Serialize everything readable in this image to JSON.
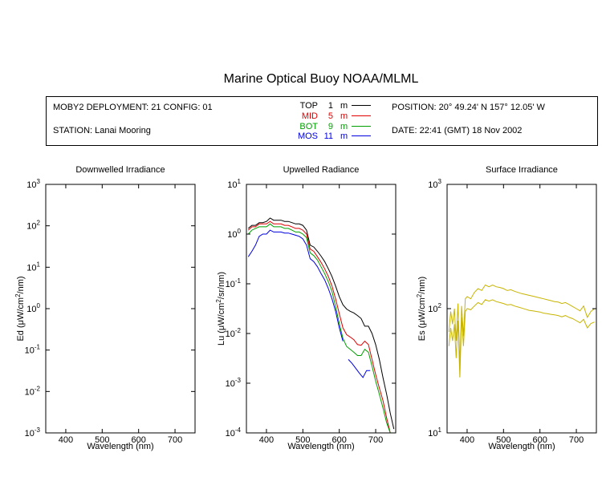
{
  "title": "Marine Optical Buoy NOAA/MLML",
  "info": {
    "deployment": "MOBY2 DEPLOYMENT: 21 CONFIG: 01",
    "station": "STATION: Lanai Mooring",
    "position": "POSITION: 20° 49.24' N   157° 12.05' W",
    "date": "DATE: 22:41 (GMT) 18 Nov 2002"
  },
  "legend": [
    {
      "name": "TOP",
      "depth": "1",
      "unit": "m",
      "color": "#000000"
    },
    {
      "name": "MID",
      "depth": "5",
      "unit": "m",
      "color": "#e00000"
    },
    {
      "name": "BOT",
      "depth": "9",
      "unit": "m",
      "color": "#00a000"
    },
    {
      "name": "MOS",
      "depth": "11",
      "unit": "m",
      "color": "#0000e0"
    }
  ],
  "chart_data": [
    {
      "type": "line",
      "title": "Downwelled Irradiance",
      "xlabel": "Wavelength (nm)",
      "ylabel": "Ed  (μW/cm²/nm)",
      "ylabel_parts": {
        "pre": "Ed  (μW/cm",
        "sup": "2",
        "post": "/nm)"
      },
      "xlim": [
        345,
        755
      ],
      "ylim": [
        0.001,
        1000
      ],
      "yscale": "log",
      "xticks": [
        400,
        500,
        600,
        700
      ],
      "ytick_exponents": [
        -3,
        -2,
        -1,
        0,
        1,
        2,
        3
      ],
      "grid": false,
      "series": []
    },
    {
      "type": "line",
      "title": "Upwelled Radiance",
      "xlabel": "Wavelength (nm)",
      "ylabel": "Lu  (μW/cm²/sr/nm)",
      "ylabel_parts": {
        "pre": "Lu  (μW/cm",
        "sup": "2",
        "post": "/sr/nm)"
      },
      "xlim": [
        345,
        755
      ],
      "ylim": [
        0.0001,
        10
      ],
      "yscale": "log",
      "xticks": [
        400,
        500,
        600,
        700
      ],
      "ytick_exponents": [
        -4,
        -3,
        -2,
        -1,
        0,
        1
      ],
      "grid": false,
      "series": [
        {
          "name": "TOP",
          "color": "#000000",
          "x": [
            350,
            360,
            370,
            380,
            390,
            400,
            410,
            420,
            430,
            440,
            450,
            460,
            470,
            480,
            490,
            500,
            510,
            520,
            530,
            540,
            550,
            560,
            570,
            580,
            590,
            600,
            610,
            620,
            630,
            640,
            650,
            660,
            670,
            680,
            690,
            700,
            710,
            720,
            730,
            740,
            750
          ],
          "y": [
            1.3,
            1.5,
            1.5,
            1.7,
            1.7,
            1.8,
            2.1,
            1.9,
            1.9,
            1.9,
            1.8,
            1.8,
            1.7,
            1.6,
            1.6,
            1.5,
            1.2,
            0.6,
            0.55,
            0.45,
            0.36,
            0.28,
            0.2,
            0.14,
            0.09,
            0.055,
            0.038,
            0.031,
            0.028,
            0.026,
            0.023,
            0.02,
            0.014,
            0.014,
            0.01,
            0.006,
            0.003,
            0.0013,
            0.0006,
            0.00025,
            0.00012
          ]
        },
        {
          "name": "MID",
          "color": "#e00000",
          "x": [
            350,
            360,
            370,
            380,
            390,
            400,
            410,
            420,
            430,
            440,
            450,
            460,
            470,
            480,
            490,
            500,
            510,
            520,
            530,
            540,
            550,
            560,
            570,
            580,
            590,
            600,
            610,
            620,
            630,
            640,
            650,
            660,
            670,
            680,
            690,
            700,
            710,
            720,
            730,
            740,
            750
          ],
          "y": [
            1.2,
            1.4,
            1.4,
            1.6,
            1.6,
            1.6,
            1.8,
            1.6,
            1.6,
            1.6,
            1.5,
            1.5,
            1.4,
            1.3,
            1.3,
            1.2,
            1.0,
            0.5,
            0.45,
            0.35,
            0.27,
            0.2,
            0.14,
            0.09,
            0.05,
            0.025,
            0.013,
            0.0095,
            0.0085,
            0.0075,
            0.006,
            0.0058,
            0.007,
            0.006,
            0.003,
            0.0015,
            0.0008,
            0.00045,
            0.0002,
            0.0001,
            0.0001
          ]
        },
        {
          "name": "BOT",
          "color": "#00a000",
          "x": [
            350,
            360,
            370,
            380,
            390,
            400,
            410,
            420,
            430,
            440,
            450,
            460,
            470,
            480,
            490,
            500,
            510,
            520,
            530,
            540,
            550,
            560,
            570,
            580,
            590,
            600,
            610,
            620,
            630,
            640,
            650,
            660,
            670,
            680,
            690,
            700,
            710,
            720,
            730,
            740,
            750
          ],
          "y": [
            1.0,
            1.2,
            1.3,
            1.4,
            1.4,
            1.4,
            1.6,
            1.4,
            1.4,
            1.4,
            1.3,
            1.3,
            1.2,
            1.1,
            1.1,
            1.0,
            0.85,
            0.42,
            0.37,
            0.3,
            0.22,
            0.16,
            0.11,
            0.07,
            0.035,
            0.016,
            0.008,
            0.0055,
            0.0048,
            0.0042,
            0.0036,
            0.0036,
            0.0048,
            0.0042,
            0.0022,
            0.0011,
            0.0006,
            0.00032,
            0.00016,
            0.0001,
            0.0001
          ]
        },
        {
          "name": "MOS",
          "color": "#0000e0",
          "x": [
            350,
            360,
            370,
            380,
            390,
            400,
            410,
            420,
            430,
            440,
            450,
            460,
            470,
            480,
            490,
            500,
            510,
            520,
            530,
            540,
            550,
            560,
            570,
            580,
            590,
            600,
            610
          ],
          "y": [
            0.35,
            0.45,
            0.6,
            0.9,
            1.0,
            1.0,
            1.2,
            1.1,
            1.1,
            1.1,
            1.05,
            1.05,
            1.0,
            0.95,
            0.9,
            0.8,
            0.6,
            0.32,
            0.28,
            0.22,
            0.16,
            0.12,
            0.08,
            0.05,
            0.028,
            0.013,
            0.007
          ]
        },
        {
          "name": "MOS-segment",
          "color": "#0000e0",
          "x": [
            625,
            635,
            645,
            655,
            665,
            675,
            685
          ],
          "y": [
            0.003,
            0.0025,
            0.002,
            0.0016,
            0.0013,
            0.0018,
            0.0018
          ]
        }
      ]
    },
    {
      "type": "line",
      "title": "Surface Irradiance",
      "xlabel": "Wavelength (nm)",
      "ylabel": "Es  (μW/cm²/nm)",
      "ylabel_parts": {
        "pre": "Es  (μW/cm",
        "sup": "2",
        "post": "/nm)"
      },
      "xlim": [
        345,
        755
      ],
      "ylim": [
        10,
        1000
      ],
      "yscale": "log",
      "xticks": [
        400,
        500,
        600,
        700
      ],
      "ytick_exponents": [
        1,
        2,
        3
      ],
      "grid": false,
      "series": [
        {
          "name": "Es-upper",
          "color": "#c8b400",
          "x": [
            350,
            355,
            360,
            365,
            370,
            375,
            380,
            385,
            390,
            395,
            400,
            410,
            420,
            430,
            440,
            450,
            460,
            470,
            480,
            490,
            500,
            510,
            520,
            530,
            540,
            550,
            560,
            570,
            580,
            590,
            600,
            610,
            620,
            630,
            640,
            650,
            660,
            670,
            680,
            690,
            700,
            710,
            720,
            730,
            740,
            750
          ],
          "y": [
            65,
            95,
            75,
            100,
            55,
            110,
            35,
            105,
            60,
            120,
            125,
            120,
            135,
            145,
            140,
            155,
            150,
            155,
            150,
            148,
            145,
            140,
            142,
            138,
            135,
            132,
            130,
            128,
            126,
            124,
            122,
            120,
            118,
            116,
            114,
            113,
            110,
            112,
            108,
            104,
            100,
            96,
            105,
            85,
            95,
            100
          ]
        },
        {
          "name": "Es-lower",
          "color": "#c8b400",
          "x": [
            350,
            355,
            360,
            365,
            370,
            375,
            380,
            385,
            390,
            395,
            400,
            410,
            420,
            430,
            440,
            450,
            460,
            470,
            480,
            490,
            500,
            510,
            520,
            530,
            540,
            550,
            560,
            570,
            580,
            590,
            600,
            610,
            620,
            630,
            640,
            650,
            660,
            670,
            680,
            690,
            700,
            710,
            720,
            730,
            740,
            750
          ],
          "y": [
            50,
            70,
            55,
            75,
            40,
            80,
            28,
            85,
            50,
            95,
            100,
            98,
            105,
            112,
            108,
            118,
            115,
            118,
            114,
            112,
            110,
            107,
            108,
            105,
            103,
            101,
            99,
            97,
            96,
            95,
            94,
            92,
            91,
            90,
            89,
            88,
            86,
            88,
            85,
            83,
            80,
            77,
            82,
            70,
            76,
            78
          ]
        }
      ]
    }
  ]
}
